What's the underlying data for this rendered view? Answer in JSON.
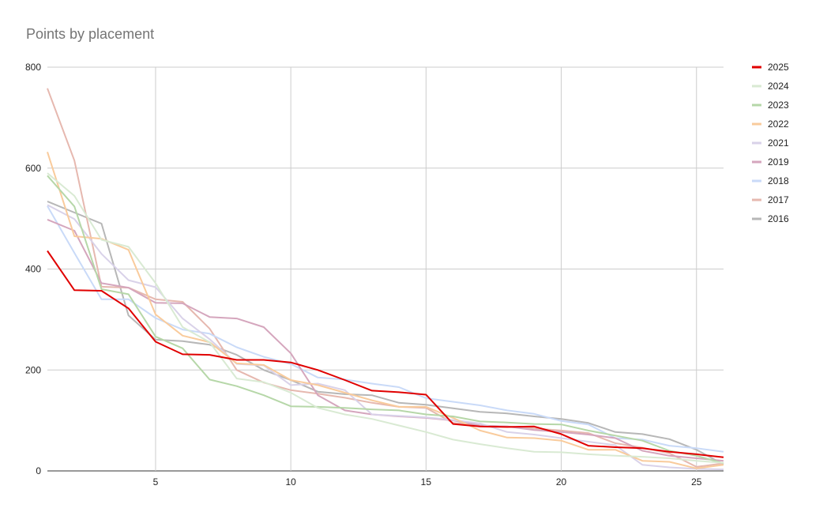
{
  "chart_data": {
    "type": "line",
    "title": "Points by placement",
    "xlabel": "",
    "ylabel": "",
    "xlim": [
      1,
      26
    ],
    "ylim": [
      0,
      800
    ],
    "x_ticks": [
      5,
      10,
      15,
      20,
      25
    ],
    "y_ticks": [
      0,
      200,
      400,
      600,
      800
    ],
    "grid": true,
    "legend_position": "right",
    "x": [
      1,
      2,
      3,
      4,
      5,
      6,
      7,
      8,
      9,
      10,
      11,
      12,
      13,
      14,
      15,
      16,
      17,
      18,
      19,
      20,
      21,
      22,
      23,
      24,
      25,
      26
    ],
    "series": [
      {
        "name": "2016",
        "color": "#b7b7b7",
        "values": [
          534,
          512,
          490,
          308,
          260,
          257,
          250,
          230,
          200,
          180,
          157,
          152,
          150,
          135,
          131,
          124,
          117,
          114,
          108,
          103,
          95,
          77,
          73,
          63,
          42,
          13
        ]
      },
      {
        "name": "2017",
        "color": "#e6b8af",
        "values": [
          758,
          615,
          365,
          363,
          340,
          335,
          282,
          200,
          175,
          160,
          153,
          145,
          135,
          127,
          125,
          95,
          90,
          88,
          84,
          80,
          75,
          55,
          46,
          35,
          8,
          15
        ]
      },
      {
        "name": "2018",
        "color": "#c9daf8",
        "values": [
          525,
          432,
          340,
          340,
          303,
          280,
          272,
          245,
          226,
          212,
          185,
          181,
          173,
          166,
          144,
          137,
          130,
          120,
          113,
          99,
          92,
          65,
          62,
          50,
          45,
          38
        ]
      },
      {
        "name": "2019",
        "color": "#d5a6bd",
        "values": [
          498,
          476,
          372,
          363,
          333,
          332,
          305,
          302,
          285,
          233,
          150,
          120,
          112,
          108,
          105,
          100,
          90,
          88,
          81,
          77,
          72,
          65,
          40,
          30,
          25,
          20
        ]
      },
      {
        "name": "2021",
        "color": "#d9d2e9",
        "values": [
          527,
          499,
          430,
          378,
          364,
          302,
          261,
          212,
          209,
          170,
          173,
          160,
          112,
          109,
          106,
          101,
          94,
          77,
          72,
          65,
          58,
          51,
          12,
          7,
          4,
          3
        ]
      },
      {
        "name": "2022",
        "color": "#f9cb9c",
        "values": [
          632,
          465,
          460,
          438,
          310,
          268,
          255,
          213,
          210,
          180,
          170,
          155,
          140,
          127,
          127,
          105,
          80,
          66,
          65,
          60,
          42,
          42,
          20,
          18,
          5,
          12
        ]
      },
      {
        "name": "2023",
        "color": "#b6d7a8",
        "values": [
          585,
          524,
          360,
          350,
          266,
          243,
          181,
          168,
          150,
          128,
          127,
          125,
          122,
          120,
          112,
          108,
          98,
          96,
          93,
          92,
          80,
          70,
          60,
          40,
          30,
          15
        ]
      },
      {
        "name": "2024",
        "color": "#d9ead3",
        "values": [
          590,
          545,
          458,
          444,
          372,
          285,
          255,
          183,
          176,
          155,
          125,
          112,
          103,
          90,
          77,
          62,
          53,
          45,
          38,
          37,
          33,
          30,
          28,
          25,
          20,
          16
        ]
      },
      {
        "name": "2025",
        "color": "#e00000",
        "values": [
          436,
          358,
          357,
          322,
          256,
          231,
          230,
          220,
          220,
          215,
          200,
          180,
          159,
          156,
          151,
          93,
          88,
          87,
          88,
          73,
          50,
          47,
          45,
          38,
          33,
          27
        ]
      }
    ],
    "legend_order": [
      "2025",
      "2024",
      "2023",
      "2022",
      "2021",
      "2019",
      "2018",
      "2017",
      "2016"
    ]
  }
}
